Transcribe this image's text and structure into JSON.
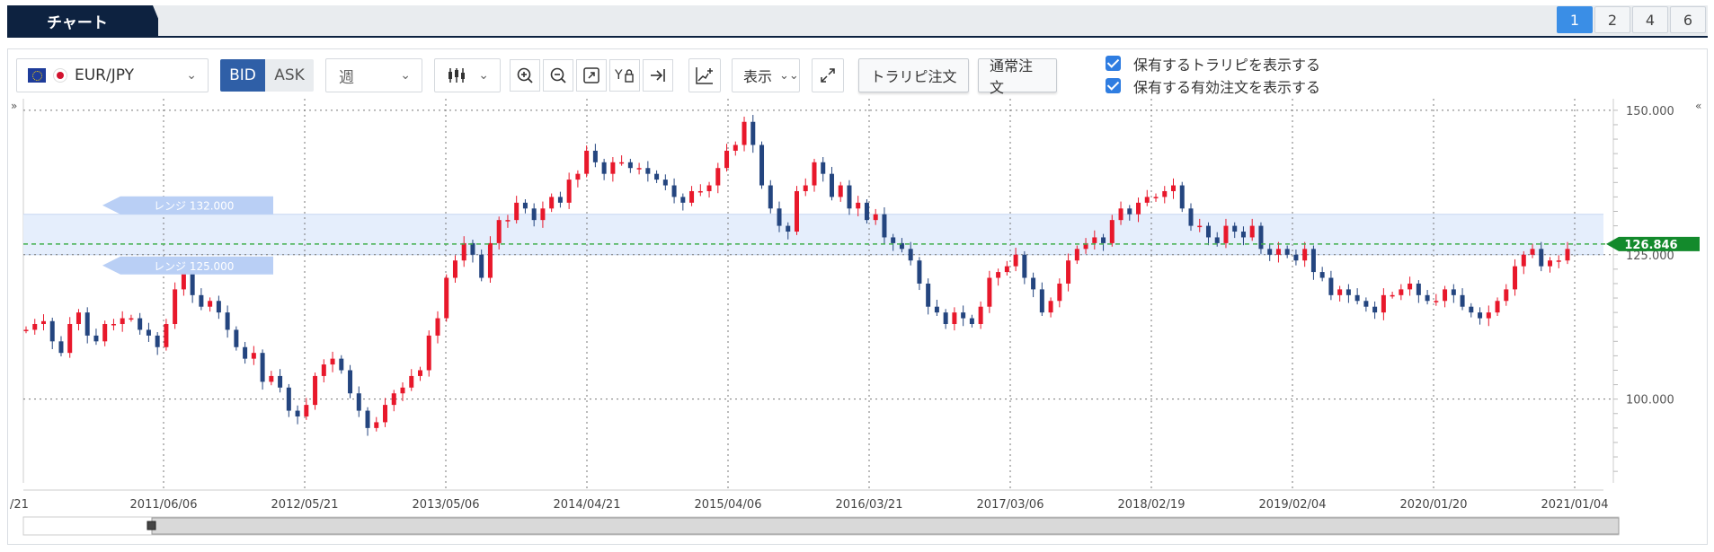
{
  "tabs": {
    "active_label": "チャート"
  },
  "layout_buttons": [
    "1",
    "2",
    "4",
    "6"
  ],
  "toolbar": {
    "pair_label": "EUR/JPY",
    "bid_label": "BID",
    "ask_label": "ASK",
    "period_label": "週",
    "display_label": "表示",
    "trap_order_label": "トラリピ注文",
    "normal_order_label": "通常注文",
    "check_trap_label": "保有するトラリピを表示する",
    "check_orders_label": "保有する有効注文を表示する"
  },
  "icons": [
    "candlestick-icon",
    "zoom-in-icon",
    "zoom-out-icon",
    "fit-icon",
    "y-lock-icon",
    "jump-end-icon",
    "indicator-icon",
    "fullscreen-icon"
  ],
  "chart_data": {
    "type": "candlestick",
    "x_ticks": [
      "/21",
      "2011/06/06",
      "2012/05/21",
      "2013/05/06",
      "2014/04/21",
      "2015/04/06",
      "2016/03/21",
      "2017/03/06",
      "2018/02/19",
      "2019/02/04",
      "2020/01/20",
      "2021/01/04"
    ],
    "y_ticks": [
      "150.000",
      "125.000",
      "100.000"
    ],
    "ylim": [
      85.5,
      152
    ],
    "current_price": "126.846",
    "range_top_label": "レンジ 132.000",
    "range_bottom_label": "レンジ 125.000",
    "range": [
      125.0,
      132.0
    ],
    "series_close": [
      112,
      113,
      113.5,
      110,
      108,
      113,
      115,
      111,
      110,
      113,
      113,
      114,
      114,
      112,
      111,
      109,
      113,
      119,
      122,
      118,
      116,
      117,
      115,
      112,
      109,
      107,
      108,
      103,
      104,
      102,
      98,
      97,
      99,
      104,
      106,
      107,
      105,
      101,
      98,
      95,
      96,
      99,
      101,
      102,
      104,
      105,
      111,
      114,
      121,
      124,
      127,
      125,
      121,
      127,
      131,
      131,
      134,
      133,
      131,
      133,
      135,
      134,
      138,
      139,
      143,
      141,
      139,
      141,
      141,
      140,
      140,
      139,
      138,
      137,
      135,
      134,
      136,
      136,
      137,
      140,
      143,
      144,
      148,
      144,
      137,
      133,
      130,
      129,
      136,
      137,
      141,
      139,
      135,
      137,
      133,
      134,
      131,
      132,
      128,
      127,
      126,
      124,
      120,
      116,
      115,
      113,
      115,
      114,
      113,
      116,
      121,
      122,
      123,
      125,
      121,
      119,
      115,
      117,
      120,
      124,
      126,
      127,
      128,
      127,
      131,
      133,
      132,
      134,
      135,
      135,
      136,
      137,
      133,
      130,
      130,
      128,
      127,
      130,
      129,
      128,
      130,
      126,
      125,
      126,
      125,
      124,
      126,
      122,
      121,
      118,
      119,
      118,
      117,
      116,
      115,
      118,
      118,
      119,
      120,
      118,
      117,
      117,
      119,
      118,
      116,
      115,
      114,
      115,
      117,
      119,
      123,
      125,
      126,
      123,
      124,
      124,
      126
    ]
  }
}
